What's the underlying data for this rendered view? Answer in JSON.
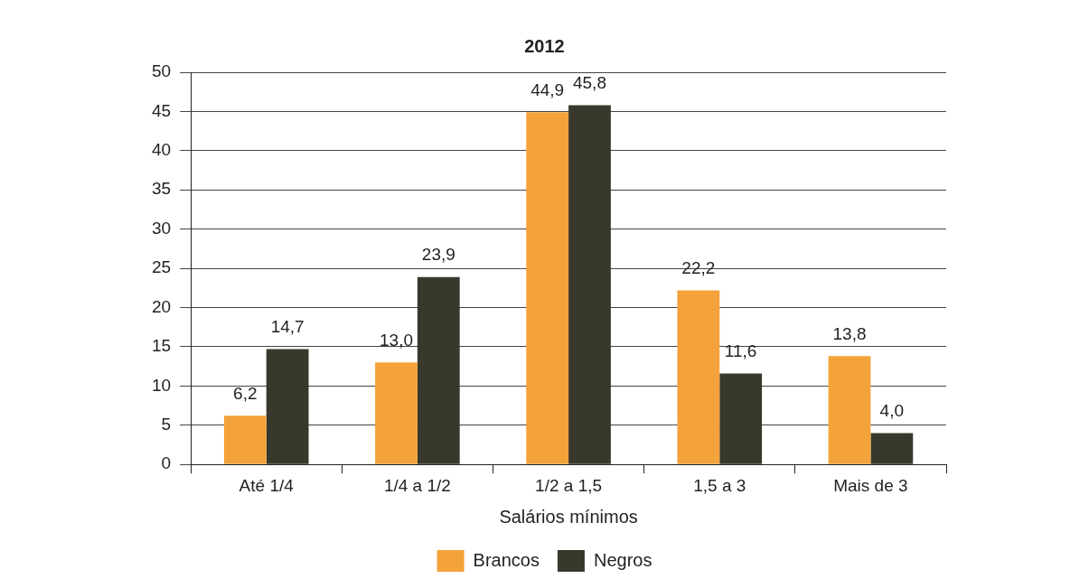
{
  "chart_data": {
    "type": "bar",
    "title": "2012",
    "xlabel": "Salários mínimos",
    "categories": [
      "Até 1/4",
      "1/4 a 1/2",
      "1/2 a 1,5",
      "1,5 a 3",
      "Mais de 3"
    ],
    "series": [
      {
        "name": "Brancos",
        "color": "#f4a33a",
        "values": [
          6.2,
          13.0,
          44.9,
          22.2,
          13.8
        ],
        "value_labels": [
          "6,2",
          "13,0",
          "44,9",
          "22,2",
          "13,8"
        ]
      },
      {
        "name": "Negros",
        "color": "#38382c",
        "values": [
          14.7,
          23.9,
          45.8,
          11.6,
          4.0
        ],
        "value_labels": [
          "14,7",
          "23,9",
          "45,8",
          "11,6",
          "4,0"
        ]
      }
    ],
    "ylim": [
      0,
      50
    ],
    "yticks": [
      0,
      5,
      10,
      15,
      20,
      25,
      30,
      35,
      40,
      45,
      50
    ],
    "grid": "y",
    "legend": "bottom"
  }
}
